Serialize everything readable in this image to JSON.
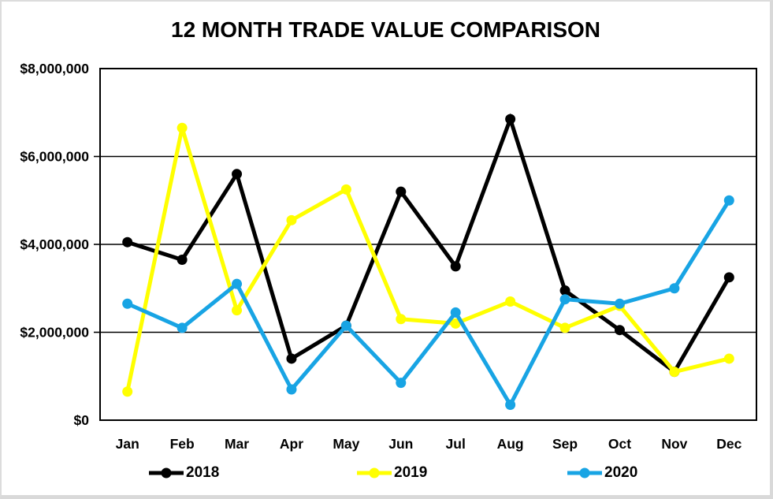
{
  "chart_data": {
    "type": "line",
    "title": "12 MONTH TRADE VALUE COMPARISON",
    "categories": [
      "Jan",
      "Feb",
      "Mar",
      "Apr",
      "May",
      "Jun",
      "Jul",
      "Aug",
      "Sep",
      "Oct",
      "Nov",
      "Dec"
    ],
    "series": [
      {
        "name": "2018",
        "color": "#000000",
        "values": [
          4050000,
          3650000,
          5600000,
          1400000,
          2150000,
          5200000,
          3500000,
          6850000,
          2950000,
          2050000,
          1100000,
          3250000
        ]
      },
      {
        "name": "2019",
        "color": "#ffff00",
        "values": [
          650000,
          6650000,
          2500000,
          4550000,
          5250000,
          2300000,
          2200000,
          2700000,
          2100000,
          2600000,
          1100000,
          1400000
        ]
      },
      {
        "name": "2020",
        "color": "#18a4e4",
        "values": [
          2650000,
          2100000,
          3100000,
          700000,
          2150000,
          850000,
          2450000,
          350000,
          2750000,
          2650000,
          3000000,
          5000000
        ]
      }
    ],
    "xlabel": "",
    "ylabel": "",
    "ylim": [
      0,
      8000000
    ],
    "ytick_interval": 2000000,
    "ytick_labels": [
      "$0",
      "$2,000,000",
      "$4,000,000",
      "$6,000,000",
      "$8,000,000"
    ],
    "grid": "horizontal",
    "legend_position": "bottom"
  }
}
